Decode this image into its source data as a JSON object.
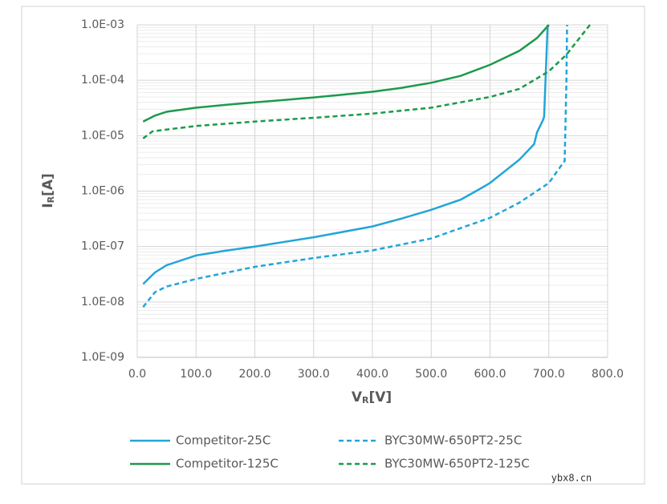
{
  "chart_data": {
    "type": "line",
    "ylabel": [
      "I",
      "R",
      "[A]"
    ],
    "xlabel": [
      "V",
      "R",
      "[V]"
    ],
    "log_y": true,
    "grid": true,
    "minor_grid": true,
    "xlim": [
      0,
      800
    ],
    "xticks": [
      {
        "value": 0,
        "label": "0.0"
      },
      {
        "value": 100,
        "label": "100.0"
      },
      {
        "value": 200,
        "label": "200.0"
      },
      {
        "value": 300,
        "label": "300.0"
      },
      {
        "value": 400,
        "label": "400.0"
      },
      {
        "value": 500,
        "label": "500.0"
      },
      {
        "value": 600,
        "label": "600.0"
      },
      {
        "value": 700,
        "label": "700.0"
      },
      {
        "value": 800,
        "label": "800.0"
      }
    ],
    "ylim": [
      1e-09,
      0.001
    ],
    "yticks": [
      {
        "value": 1e-09,
        "label": "1.0E-09"
      },
      {
        "value": 1e-08,
        "label": "1.0E-08"
      },
      {
        "value": 1e-07,
        "label": "1.0E-07"
      },
      {
        "value": 1e-06,
        "label": "1.0E-06"
      },
      {
        "value": 1e-05,
        "label": "1.0E-05"
      },
      {
        "value": 0.0001,
        "label": "1.0E-04"
      },
      {
        "value": 0.001,
        "label": "1.0E-03"
      }
    ],
    "legend": "bottom",
    "series": [
      {
        "name": "Competitor-25C",
        "color": "#22a5d8",
        "dash": "solid",
        "x": [
          10,
          30,
          50,
          100,
          150,
          200,
          300,
          400,
          450,
          500,
          550,
          580,
          600,
          650,
          675,
          680,
          690,
          692,
          698
        ],
        "values": [
          2.1e-08,
          3.4e-08,
          4.6e-08,
          6.9e-08,
          8.4e-08,
          1e-07,
          1.47e-07,
          2.3e-07,
          3.2e-07,
          4.6e-07,
          7e-07,
          1.05e-06,
          1.4e-06,
          3.7e-06,
          7e-06,
          1.15e-05,
          1.9e-05,
          2.2e-05,
          0.001
        ]
      },
      {
        "name": "Competitor-125C",
        "color": "#1b9a4c",
        "dash": "solid",
        "x": [
          10,
          30,
          50,
          100,
          150,
          200,
          250,
          300,
          350,
          400,
          450,
          500,
          550,
          600,
          650,
          680,
          700
        ],
        "values": [
          1.8e-05,
          2.3e-05,
          2.7e-05,
          3.2e-05,
          3.6e-05,
          4e-05,
          4.4e-05,
          4.9e-05,
          5.5e-05,
          6.2e-05,
          7.3e-05,
          9e-05,
          0.00012,
          0.00019,
          0.00034,
          0.00058,
          0.001
        ]
      },
      {
        "name": "BYC30MW-650PT2-25C",
        "color": "#22a5d8",
        "dash": "dashed",
        "x": [
          10,
          30,
          50,
          100,
          200,
          300,
          400,
          500,
          600,
          650,
          700,
          725,
          727,
          730,
          731
        ],
        "values": [
          8.1e-09,
          1.5e-08,
          1.9e-08,
          2.6e-08,
          4.3e-08,
          6.2e-08,
          8.5e-08,
          1.4e-07,
          3.3e-07,
          6.2e-07,
          1.4e-06,
          3.3e-06,
          3.5e-06,
          0.0001,
          0.001
        ]
      },
      {
        "name": "BYC30MW-650PT2-125C",
        "color": "#1b9a4c",
        "dash": "dashed",
        "x": [
          10,
          26,
          100,
          200,
          300,
          400,
          500,
          600,
          650,
          700,
          730,
          770
        ],
        "values": [
          8.9e-06,
          1.2e-05,
          1.5e-05,
          1.8e-05,
          2.1e-05,
          2.5e-05,
          3.2e-05,
          5e-05,
          7e-05,
          0.000145,
          0.00029,
          0.001
        ]
      }
    ],
    "watermark": "ybx8.cn"
  }
}
